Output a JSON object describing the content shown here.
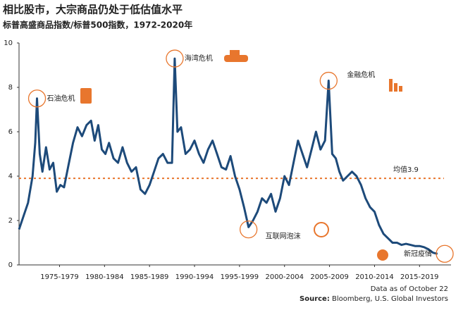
{
  "chart_data": {
    "type": "line",
    "title": "相比股市，大宗商品仍处于低估值水平",
    "subtitle": "标普高盛商品指数/标普500指数，1972-2020年",
    "footnote": "Data as of October 22",
    "source_label": "Source:",
    "source": "Bloomberg, U.S. Global Investors",
    "color": "#1d4a7a",
    "x": [
      1973.0,
      1973.5,
      1974.0,
      1974.5,
      1974.8,
      1975.0,
      1975.3,
      1975.6,
      1976.0,
      1976.4,
      1976.8,
      1977.2,
      1977.6,
      1978.0,
      1978.5,
      1979.0,
      1979.5,
      1980.0,
      1980.5,
      1981.0,
      1981.4,
      1981.8,
      1982.2,
      1982.6,
      1983.0,
      1983.5,
      1984.0,
      1984.5,
      1985.0,
      1985.5,
      1986.0,
      1986.5,
      1987.0,
      1987.5,
      1988.0,
      1988.5,
      1989.0,
      1989.5,
      1990.0,
      1990.3,
      1990.6,
      1991.0,
      1991.5,
      1992.0,
      1992.5,
      1993.0,
      1993.5,
      1994.0,
      1994.5,
      1995.0,
      1995.5,
      1996.0,
      1996.5,
      1997.0,
      1997.5,
      1998.0,
      1998.5,
      1999.0,
      1999.5,
      2000.0,
      2000.5,
      2001.0,
      2001.5,
      2002.0,
      2002.5,
      2003.0,
      2003.5,
      2004.0,
      2004.5,
      2005.0,
      2005.5,
      2006.0,
      2006.5,
      2007.0,
      2007.4,
      2007.8,
      2008.2,
      2008.6,
      2009.0,
      2009.5,
      2010.0,
      2010.5,
      2011.0,
      2011.5,
      2012.0,
      2012.5,
      2013.0,
      2013.5,
      2014.0,
      2014.5,
      2015.0,
      2015.5,
      2016.0,
      2016.5,
      2017.0,
      2017.5,
      2018.0,
      2018.5,
      2019.0,
      2019.5
    ],
    "values": [
      1.6,
      2.2,
      2.8,
      4.0,
      5.5,
      7.5,
      5.0,
      4.2,
      5.3,
      4.3,
      4.6,
      3.3,
      3.6,
      3.5,
      4.5,
      5.5,
      6.2,
      5.8,
      6.3,
      6.5,
      5.6,
      6.3,
      5.2,
      5.0,
      5.5,
      4.8,
      4.6,
      5.3,
      4.6,
      4.2,
      4.4,
      3.4,
      3.2,
      3.6,
      4.2,
      4.8,
      5.0,
      4.6,
      4.6,
      9.3,
      6.0,
      6.2,
      5.0,
      5.2,
      5.6,
      5.0,
      4.6,
      5.2,
      5.6,
      5.0,
      4.4,
      4.3,
      4.9,
      4.0,
      3.4,
      2.6,
      1.7,
      2.0,
      2.4,
      3.0,
      2.8,
      3.2,
      2.4,
      3.0,
      4.0,
      3.6,
      4.6,
      5.6,
      5.0,
      4.4,
      5.2,
      6.0,
      5.2,
      5.6,
      8.3,
      5.0,
      4.8,
      4.2,
      3.8,
      4.0,
      4.2,
      4.0,
      3.6,
      3.0,
      2.6,
      2.4,
      1.8,
      1.4,
      1.2,
      1.0,
      1.0,
      0.9,
      0.95,
      0.9,
      0.85,
      0.85,
      0.8,
      0.7,
      0.55,
      0.5
    ],
    "xlim": [
      1973,
      2021
    ],
    "ylim": [
      0,
      10
    ],
    "yticks": [
      0,
      2,
      4,
      6,
      8,
      10
    ],
    "xticks": [
      {
        "value": 1977.5,
        "label": "1975-1979"
      },
      {
        "value": 1982.5,
        "label": "1980-1984"
      },
      {
        "value": 1987.5,
        "label": "1985-1989"
      },
      {
        "value": 1992.5,
        "label": "1990-1994"
      },
      {
        "value": 1997.5,
        "label": "1995-1999"
      },
      {
        "value": 2002.5,
        "label": "2000-2004"
      },
      {
        "value": 2007.5,
        "label": "2005-2009"
      },
      {
        "value": 2012.5,
        "label": "2010-2014"
      },
      {
        "value": 2017.5,
        "label": "2015-2019"
      }
    ],
    "mean": {
      "value": 3.9,
      "label": "均值3.9",
      "color": "#e8762d"
    },
    "annotations": [
      {
        "text": "石油危机",
        "x": 1975.0,
        "y": 7.5
      },
      {
        "text": "海湾危机",
        "x": 1990.3,
        "y": 9.3
      },
      {
        "text": "金融危机",
        "x": 2007.4,
        "y": 8.3
      },
      {
        "text": "互联网泡沫",
        "x": 1998.5,
        "y": 1.6
      },
      {
        "text": "新冠疫情",
        "x": 2020.3,
        "y": 0.5
      }
    ]
  }
}
